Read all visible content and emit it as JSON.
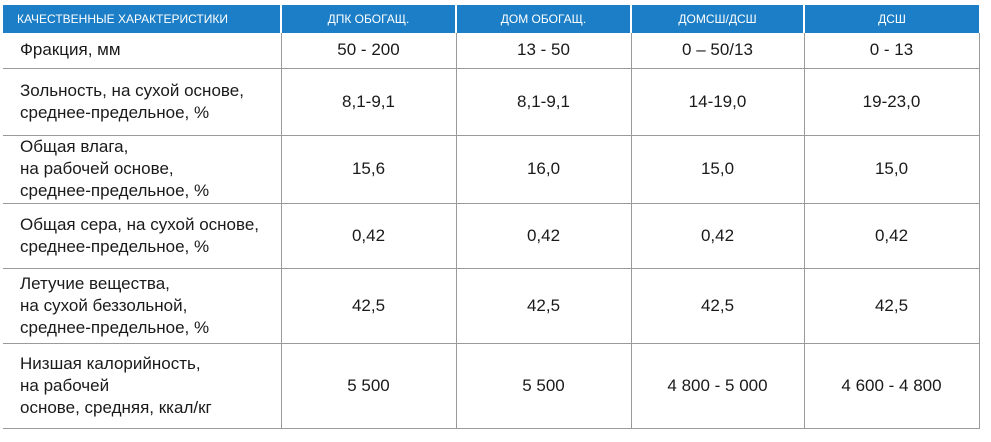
{
  "table": {
    "header": [
      "КАЧЕСТВЕННЫЕ ХАРАКТЕРИСТИКИ",
      "ДПК ОБОГАЩ.",
      "ДОМ ОБОГАЩ.",
      "ДОМСШ/ДСШ",
      "ДСШ"
    ],
    "rows": [
      {
        "label": [
          "Фракция, мм"
        ],
        "values": [
          "50 - 200",
          "13 - 50",
          "0 – 50/13",
          "0 - 13"
        ]
      },
      {
        "label": [
          "Зольность, на сухой основе,",
          "среднее-предельное, %"
        ],
        "values": [
          "8,1-9,1",
          "8,1-9,1",
          "14-19,0",
          "19-23,0"
        ]
      },
      {
        "label": [
          "Общая влага,",
          "на рабочей основе,",
          "среднее-предельное, %"
        ],
        "values": [
          "15,6",
          "16,0",
          "15,0",
          "15,0"
        ]
      },
      {
        "label": [
          "Общая сера, на сухой основе,",
          "среднее-предельное, %"
        ],
        "values": [
          "0,42",
          "0,42",
          "0,42",
          "0,42"
        ]
      },
      {
        "label": [
          "Летучие вещества,",
          "на сухой беззольной,",
          "среднее-предельное, %"
        ],
        "values": [
          "42,5",
          "42,5",
          "42,5",
          "42,5"
        ]
      },
      {
        "label": [
          "Низшая калорийность,",
          "на рабочей",
          "основе, средняя, ккал/кг"
        ],
        "values": [
          "5 500",
          "5 500",
          "4 800 - 5 000",
          "4 600 - 4 800"
        ]
      }
    ]
  }
}
